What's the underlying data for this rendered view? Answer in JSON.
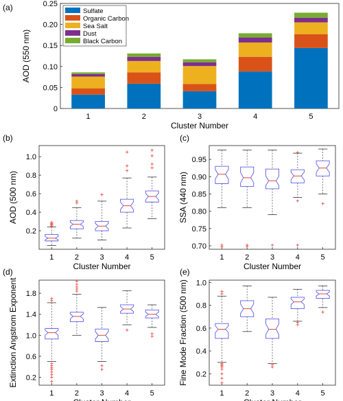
{
  "chart_data": [
    {
      "panel": "(a)",
      "type": "stacked-bar",
      "xlabel": "Cluster Number",
      "ylabel": "AOD (550 nm)",
      "categories": [
        "1",
        "2",
        "3",
        "4",
        "5"
      ],
      "ylim": [
        0,
        0.25
      ],
      "yticks": [
        "0",
        "0.05",
        "0.10",
        "0.15",
        "0.20",
        "0.25"
      ],
      "legend_position": "top-left",
      "series": [
        {
          "name": "Sulfate",
          "color": "#0072BD",
          "values": [
            0.033,
            0.059,
            0.041,
            0.088,
            0.144
          ]
        },
        {
          "name": "Organic Carbon",
          "color": "#D95319",
          "values": [
            0.015,
            0.027,
            0.017,
            0.035,
            0.033
          ]
        },
        {
          "name": "Sea Salt",
          "color": "#EDB120",
          "values": [
            0.028,
            0.027,
            0.043,
            0.034,
            0.028
          ]
        },
        {
          "name": "Dust",
          "color": "#7E2F8E",
          "values": [
            0.006,
            0.01,
            0.009,
            0.012,
            0.011
          ]
        },
        {
          "name": "Black Carbon",
          "color": "#77AC30",
          "values": [
            0.004,
            0.008,
            0.007,
            0.01,
            0.012
          ]
        }
      ]
    },
    {
      "panel": "(b)",
      "type": "boxplot",
      "xlabel": "Cluster Number",
      "ylabel": "AOD (500 nm)",
      "categories": [
        "1",
        "2",
        "3",
        "4",
        "5"
      ],
      "ylim": [
        0,
        1.12
      ],
      "yticks": [
        "0.2",
        "0.4",
        "0.6",
        "0.8",
        "1.0"
      ],
      "box_color": "#5B5BE8",
      "median_color": "#E8443A",
      "outlier_color": "#E8443A",
      "boxes": [
        {
          "whisker_low": 0.04,
          "q1": 0.09,
          "median": 0.12,
          "q3": 0.16,
          "whisker_high": 0.24,
          "outliers": [
            0.25,
            0.26,
            0.27,
            0.28,
            0.29
          ]
        },
        {
          "whisker_low": 0.12,
          "q1": 0.22,
          "median": 0.27,
          "q3": 0.31,
          "whisker_high": 0.45,
          "outliers": [
            0.5,
            0.52
          ]
        },
        {
          "whisker_low": 0.1,
          "q1": 0.2,
          "median": 0.25,
          "q3": 0.3,
          "whisker_high": 0.52,
          "outliers": [
            0.59
          ]
        },
        {
          "whisker_low": 0.23,
          "q1": 0.4,
          "median": 0.47,
          "q3": 0.54,
          "whisker_high": 0.77,
          "outliers": [
            0.85,
            0.9,
            1.05
          ]
        },
        {
          "whisker_low": 0.33,
          "q1": 0.51,
          "median": 0.57,
          "q3": 0.63,
          "whisker_high": 0.78,
          "outliers": [
            0.88,
            0.92,
            1.01,
            1.07
          ]
        }
      ]
    },
    {
      "panel": "(c)",
      "type": "boxplot",
      "xlabel": "Cluster Number",
      "ylabel": "SSA  (440 nm)",
      "categories": [
        "1",
        "2",
        "3",
        "4",
        "5"
      ],
      "ylim": [
        0.69,
        0.99
      ],
      "yticks": [
        "0.70",
        "0.75",
        "0.80",
        "0.85",
        "0.90",
        "0.95"
      ],
      "box_color": "#5B5BE8",
      "median_color": "#E8443A",
      "outlier_color": "#E8443A",
      "boxes": [
        {
          "whisker_low": 0.81,
          "q1": 0.88,
          "median": 0.907,
          "q3": 0.93,
          "whisker_high": 0.977,
          "outliers": [
            0.702,
            0.697
          ]
        },
        {
          "whisker_low": 0.81,
          "q1": 0.872,
          "median": 0.897,
          "q3": 0.928,
          "whisker_high": 0.977,
          "outliers": [
            0.702,
            0.698
          ]
        },
        {
          "whisker_low": 0.79,
          "q1": 0.865,
          "median": 0.888,
          "q3": 0.922,
          "whisker_high": 0.977,
          "outliers": [
            0.702
          ]
        },
        {
          "whisker_low": 0.84,
          "q1": 0.882,
          "median": 0.902,
          "q3": 0.92,
          "whisker_high": 0.968,
          "outliers": [
            0.702,
            0.83,
            0.97
          ]
        },
        {
          "whisker_low": 0.85,
          "q1": 0.902,
          "median": 0.925,
          "q3": 0.946,
          "whisker_high": 0.98,
          "outliers": [
            0.822
          ]
        }
      ]
    },
    {
      "panel": "(d)",
      "type": "boxplot",
      "xlabel": "Cluster Number",
      "ylabel": "Extinction Angstrom Exponent",
      "categories": [
        "1",
        "2",
        "3",
        "4",
        "5"
      ],
      "ylim": [
        0.05,
        2.05
      ],
      "yticks": [
        "0.2",
        "0.6",
        "1.0",
        "1.4",
        "1.8"
      ],
      "box_color": "#5B5BE8",
      "median_color": "#E8443A",
      "outlier_color": "#E8443A",
      "boxes": [
        {
          "whisker_low": 0.5,
          "q1": 0.93,
          "median": 1.05,
          "q3": 1.13,
          "whisker_high": 1.62,
          "outliers": [
            0.12,
            0.2,
            0.25,
            0.3,
            0.35,
            0.38,
            0.42,
            0.46,
            1.66,
            1.7
          ]
        },
        {
          "whisker_low": 1.0,
          "q1": 1.26,
          "median": 1.36,
          "q3": 1.44,
          "whisker_high": 1.78,
          "outliers": [
            1.84,
            1.88,
            1.92,
            1.97,
            2.03
          ]
        },
        {
          "whisker_low": 0.5,
          "q1": 0.88,
          "median": 1.0,
          "q3": 1.12,
          "whisker_high": 1.53,
          "outliers": [
            0.35,
            0.42
          ]
        },
        {
          "whisker_low": 1.2,
          "q1": 1.42,
          "median": 1.5,
          "q3": 1.58,
          "whisker_high": 1.85,
          "outliers": [
            1.1
          ]
        },
        {
          "whisker_low": 1.15,
          "q1": 1.33,
          "median": 1.4,
          "q3": 1.48,
          "whisker_high": 1.58,
          "outliers": [
            0.98,
            1.03
          ]
        }
      ]
    },
    {
      "panel": "(e)",
      "type": "boxplot",
      "xlabel": "Cluster Number",
      "ylabel": "Fine Mode Fraction (500 nm)",
      "categories": [
        "1",
        "2",
        "3",
        "4",
        "5"
      ],
      "ylim": [
        0.1,
        1.02
      ],
      "yticks": [
        "0.2",
        "0.4",
        "0.6",
        "0.8",
        "1.0"
      ],
      "box_color": "#5B5BE8",
      "median_color": "#E8443A",
      "outlier_color": "#E8443A",
      "boxes": [
        {
          "whisker_low": 0.3,
          "q1": 0.51,
          "median": 0.59,
          "q3": 0.64,
          "whisker_high": 0.88,
          "outliers": [
            0.12,
            0.16,
            0.2,
            0.24,
            0.26,
            0.27,
            0.28,
            0.29,
            0.9,
            0.92
          ]
        },
        {
          "whisker_low": 0.57,
          "q1": 0.7,
          "median": 0.77,
          "q3": 0.84,
          "whisker_high": 0.97,
          "outliers": []
        },
        {
          "whisker_low": 0.29,
          "q1": 0.51,
          "median": 0.59,
          "q3": 0.68,
          "whisker_high": 0.87,
          "outliers": [
            0.26,
            0.28
          ]
        },
        {
          "whisker_low": 0.66,
          "q1": 0.77,
          "median": 0.83,
          "q3": 0.87,
          "whisker_high": 0.94,
          "outliers": [
            0.63,
            0.65
          ]
        },
        {
          "whisker_low": 0.78,
          "q1": 0.86,
          "median": 0.9,
          "q3": 0.93,
          "whisker_high": 0.97,
          "outliers": [
            0.74
          ]
        }
      ]
    }
  ]
}
